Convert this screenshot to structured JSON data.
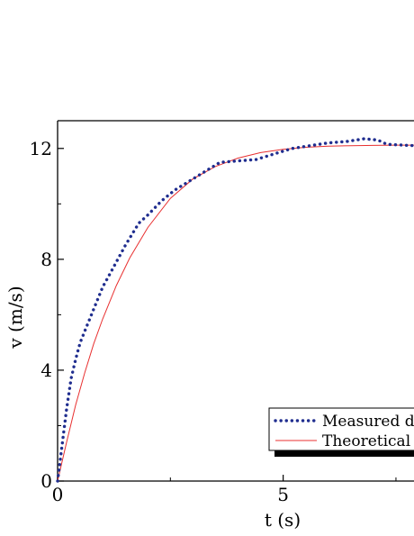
{
  "chart_data": {
    "type": "line",
    "title": "",
    "xlabel": "t (s)",
    "ylabel": "v (m/s)",
    "xlim": [
      0,
      7.9
    ],
    "ylim": [
      0,
      13
    ],
    "x_ticks": [
      0,
      5
    ],
    "y_ticks": [
      0,
      4,
      8,
      12
    ],
    "x_tick_labels": [
      "0",
      "5"
    ],
    "y_tick_labels": [
      "0",
      "4",
      "8",
      "12"
    ],
    "grid": false,
    "legend_position": "bottom-right",
    "series": [
      {
        "name": "Measured data",
        "style": "dotted",
        "color": "#1f2d8f",
        "x": [
          0,
          0.1,
          0.2,
          0.3,
          0.4,
          0.5,
          0.6,
          0.8,
          1.0,
          1.2,
          1.5,
          1.8,
          2.0,
          2.3,
          2.6,
          3.0,
          3.4,
          3.6,
          4.0,
          4.4,
          4.8,
          5.2,
          5.6,
          6.0,
          6.4,
          6.8,
          7.1,
          7.3,
          7.9
        ],
        "y": [
          0,
          1.3,
          2.6,
          3.7,
          4.4,
          5.0,
          5.4,
          6.2,
          7.0,
          7.6,
          8.5,
          9.3,
          9.6,
          10.1,
          10.5,
          10.9,
          11.3,
          11.5,
          11.55,
          11.6,
          11.8,
          12.0,
          12.1,
          12.2,
          12.25,
          12.35,
          12.3,
          12.15,
          12.1
        ]
      },
      {
        "name": "Theoretical speed",
        "style": "solid",
        "color": "#e83030",
        "x": [
          0,
          0.2,
          0.4,
          0.6,
          0.8,
          1.0,
          1.3,
          1.6,
          2.0,
          2.5,
          3.0,
          3.5,
          4.0,
          4.5,
          5.0,
          5.5,
          6.0,
          6.5,
          7.0,
          7.5,
          7.9
        ],
        "y": [
          0,
          1.4,
          2.75,
          3.9,
          4.95,
          5.85,
          7.05,
          8.05,
          9.15,
          10.2,
          10.9,
          11.35,
          11.65,
          11.85,
          11.97,
          12.04,
          12.08,
          12.1,
          12.11,
          12.12,
          12.12
        ]
      }
    ],
    "legend_entries": [
      "Measured data",
      "Theoretical speed"
    ]
  }
}
